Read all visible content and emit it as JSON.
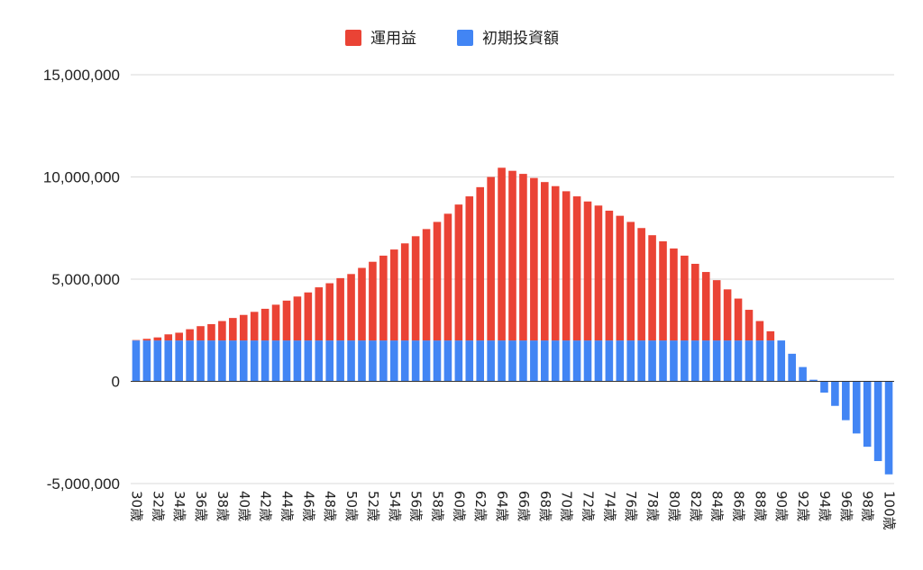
{
  "chart_data": {
    "type": "bar",
    "stacked": true,
    "grid": true,
    "legend_position": "top",
    "categories": [
      "30歳",
      "31歳",
      "32歳",
      "33歳",
      "34歳",
      "35歳",
      "36歳",
      "37歳",
      "38歳",
      "39歳",
      "40歳",
      "41歳",
      "42歳",
      "43歳",
      "44歳",
      "45歳",
      "46歳",
      "47歳",
      "48歳",
      "49歳",
      "50歳",
      "51歳",
      "52歳",
      "53歳",
      "54歳",
      "55歳",
      "56歳",
      "57歳",
      "58歳",
      "59歳",
      "60歳",
      "61歳",
      "62歳",
      "63歳",
      "64歳",
      "65歳",
      "66歳",
      "67歳",
      "68歳",
      "69歳",
      "70歳",
      "71歳",
      "72歳",
      "73歳",
      "74歳",
      "75歳",
      "76歳",
      "77歳",
      "78歳",
      "79歳",
      "80歳",
      "81歳",
      "82歳",
      "83歳",
      "84歳",
      "85歳",
      "86歳",
      "87歳",
      "88歳",
      "89歳",
      "90歳",
      "91歳",
      "92歳",
      "93歳",
      "94歳",
      "95歳",
      "96歳",
      "97歳",
      "98歳",
      "99歳",
      "100歳"
    ],
    "tick_labels": [
      "30歳",
      "32歳",
      "34歳",
      "36歳",
      "38歳",
      "40歳",
      "42歳",
      "44歳",
      "46歳",
      "48歳",
      "50歳",
      "52歳",
      "54歳",
      "56歳",
      "58歳",
      "60歳",
      "62歳",
      "64歳",
      "66歳",
      "68歳",
      "70歳",
      "72歳",
      "74歳",
      "76歳",
      "78歳",
      "80歳",
      "82歳",
      "84歳",
      "86歳",
      "88歳",
      "90歳",
      "92歳",
      "94歳",
      "96歳",
      "98歳",
      "100歳"
    ],
    "series": [
      {
        "name": "初期投資額",
        "color": "#4285F4",
        "values": [
          2000000,
          2000000,
          2000000,
          2000000,
          2000000,
          2000000,
          2000000,
          2000000,
          2000000,
          2000000,
          2000000,
          2000000,
          2000000,
          2000000,
          2000000,
          2000000,
          2000000,
          2000000,
          2000000,
          2000000,
          2000000,
          2000000,
          2000000,
          2000000,
          2000000,
          2000000,
          2000000,
          2000000,
          2000000,
          2000000,
          2000000,
          2000000,
          2000000,
          2000000,
          2000000,
          2000000,
          2000000,
          2000000,
          2000000,
          2000000,
          2000000,
          2000000,
          2000000,
          2000000,
          2000000,
          2000000,
          2000000,
          2000000,
          2000000,
          2000000,
          2000000,
          2000000,
          2000000,
          2000000,
          2000000,
          2000000,
          2000000,
          2000000,
          2000000,
          2000000,
          2000000,
          1350000,
          700000,
          80000,
          -550000,
          -1200000,
          -1900000,
          -2550000,
          -3200000,
          -3900000,
          -4550000
        ]
      },
      {
        "name": "運用益",
        "color": "#EA4335",
        "values": [
          20000,
          80000,
          150000,
          300000,
          380000,
          550000,
          700000,
          800000,
          950000,
          1100000,
          1250000,
          1400000,
          1550000,
          1750000,
          1950000,
          2150000,
          2350000,
          2600000,
          2800000,
          3050000,
          3250000,
          3550000,
          3850000,
          4150000,
          4450000,
          4750000,
          5100000,
          5450000,
          5800000,
          6200000,
          6650000,
          7050000,
          7500000,
          8000000,
          8450000,
          8300000,
          8150000,
          7950000,
          7750000,
          7550000,
          7300000,
          7050000,
          6800000,
          6600000,
          6350000,
          6100000,
          5800000,
          5500000,
          5150000,
          4850000,
          4500000,
          4150000,
          3750000,
          3350000,
          2950000,
          2500000,
          2050000,
          1500000,
          950000,
          450000,
          0,
          0,
          0,
          0,
          0,
          0,
          0,
          0,
          0,
          0,
          0
        ]
      }
    ],
    "ylim": [
      -5000000,
      15000000
    ],
    "yticks": [
      -5000000,
      0,
      5000000,
      10000000,
      15000000
    ],
    "ytick_labels": [
      "-5,000,000",
      "0",
      "5,000,000",
      "10,000,000",
      "15,000,000"
    ],
    "xlabel": "",
    "ylabel": "",
    "title": ""
  }
}
